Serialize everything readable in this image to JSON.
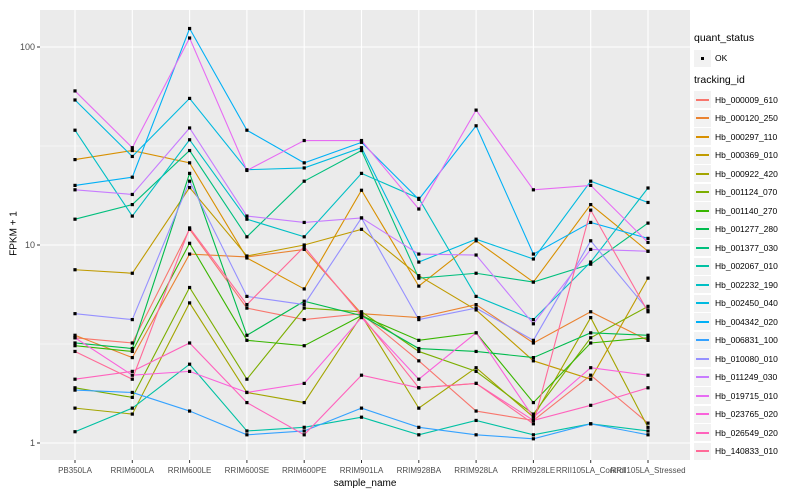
{
  "ui": {
    "background": "#FFFFFF",
    "panel_background": "#EBEBEB",
    "grid_color": "#FFFFFF",
    "legend_key_background": "#F2F2F2",
    "point_color": "#000000",
    "axis_text_color": "#4D4D4D"
  },
  "legend": {
    "quant_status_title": "quant_status",
    "quant_status_items": [
      "OK"
    ],
    "tracking_id_title": "tracking_id"
  },
  "chart_data": {
    "type": "line",
    "title": "",
    "xlabel": "sample_name",
    "ylabel": "FPKM + 1",
    "y_scale": "log10",
    "y_ticks": [
      1,
      10,
      100
    ],
    "ylim_log": [
      -0.09,
      2.19
    ],
    "grid": true,
    "legend_position": "right",
    "marker": "black-square",
    "categories": [
      "PB350LA",
      "RRIM600LA",
      "RRIM600LE",
      "RRIM600SE",
      "RRIM600PE",
      "RRIM901LA",
      "RRIM928BA",
      "RRIM928LA",
      "RRIM928LE",
      "RRII105LA_Control",
      "RRII105LA_Stressed"
    ],
    "series": [
      {
        "name": "Hb_000009_610",
        "color": "#F8766D",
        "values": [
          3.4,
          3.2,
          12.0,
          4.8,
          4.2,
          4.5,
          2.6,
          1.45,
          1.3,
          2.2,
          1.26
        ]
      },
      {
        "name": "Hb_000120_250",
        "color": "#EA8331",
        "values": [
          3.5,
          2.7,
          9.0,
          8.7,
          9.5,
          4.5,
          4.3,
          5.0,
          3.2,
          4.6,
          3.3
        ]
      },
      {
        "name": "Hb_000297_110",
        "color": "#D89000",
        "values": [
          27,
          30,
          26,
          8.6,
          6.0,
          18.9,
          6.2,
          10.5,
          6.5,
          16,
          9.3
        ]
      },
      {
        "name": "Hb_000369_010",
        "color": "#C09B00",
        "values": [
          7.5,
          7.2,
          19.5,
          8.8,
          10,
          12,
          7.0,
          4.7,
          2.6,
          2.1,
          6.8
        ]
      },
      {
        "name": "Hb_000922_420",
        "color": "#A3A500",
        "values": [
          1.5,
          1.4,
          5.1,
          1.8,
          1.6,
          4.4,
          1.5,
          2.4,
          1.35,
          4.3,
          1.2
        ]
      },
      {
        "name": "Hb_001124_070",
        "color": "#7CAE00",
        "values": [
          1.9,
          1.7,
          6.1,
          2.1,
          4.8,
          4.6,
          2.9,
          2.3,
          1.4,
          3.4,
          4.9
        ]
      },
      {
        "name": "Hb_001140_270",
        "color": "#39B600",
        "values": [
          3.1,
          2.9,
          10.2,
          3.3,
          3.1,
          4.4,
          3.3,
          3.6,
          1.6,
          3.2,
          3.4
        ]
      },
      {
        "name": "Hb_001277_280",
        "color": "#00BB4E",
        "values": [
          3.2,
          3.0,
          23,
          3.5,
          5.2,
          4.4,
          3.0,
          2.9,
          2.7,
          3.6,
          3.5
        ]
      },
      {
        "name": "Hb_001377_030",
        "color": "#00BF7D",
        "values": [
          13.5,
          16,
          30,
          11,
          21,
          30,
          6.8,
          7.2,
          6.5,
          8.0,
          12.9
        ]
      },
      {
        "name": "Hb_002067_010",
        "color": "#00C1A3",
        "values": [
          1.14,
          1.5,
          2.5,
          1.15,
          1.2,
          1.35,
          1.1,
          1.3,
          1.1,
          1.25,
          1.15
        ]
      },
      {
        "name": "Hb_002232_190",
        "color": "#00BFC4",
        "values": [
          38,
          14,
          34,
          13.5,
          11,
          23,
          17.2,
          5.5,
          4.2,
          8.2,
          19.4
        ]
      },
      {
        "name": "Hb_002450_040",
        "color": "#00BAE0",
        "values": [
          54,
          28,
          55,
          24,
          24.5,
          31,
          8.2,
          10.7,
          8.5,
          21,
          16.4
        ]
      },
      {
        "name": "Hb_004342_020",
        "color": "#00B0F6",
        "values": [
          20,
          22,
          124,
          38,
          26,
          33,
          17,
          40,
          9.0,
          13,
          10.8
        ]
      },
      {
        "name": "Hb_006831_100",
        "color": "#35A2FF",
        "values": [
          1.85,
          1.8,
          1.45,
          1.1,
          1.15,
          1.5,
          1.2,
          1.1,
          1.05,
          1.25,
          1.1
        ]
      },
      {
        "name": "Hb_010080_010",
        "color": "#9590FF",
        "values": [
          4.5,
          4.2,
          21,
          5.5,
          5.0,
          13.7,
          4.2,
          4.8,
          3.3,
          10.5,
          4.7
        ]
      },
      {
        "name": "Hb_011249_030",
        "color": "#C77CFF",
        "values": [
          19,
          18,
          39,
          14,
          13,
          13.7,
          9.0,
          8.9,
          4.0,
          9.5,
          9.3
        ]
      },
      {
        "name": "Hb_019715_010",
        "color": "#E76BF3",
        "values": [
          60,
          31,
          111,
          23.8,
          33.7,
          33.7,
          15.2,
          48,
          19,
          20,
          10.3
        ]
      },
      {
        "name": "Hb_023765_020",
        "color": "#FA62DB",
        "values": [
          3.4,
          2.2,
          2.3,
          1.8,
          2.0,
          4.3,
          2.1,
          3.6,
          1.35,
          2.4,
          2.2
        ]
      },
      {
        "name": "Hb_026549_020",
        "color": "#FF62BC",
        "values": [
          2.1,
          2.3,
          3.2,
          1.6,
          1.1,
          2.2,
          1.9,
          2.0,
          1.3,
          1.55,
          1.9
        ]
      },
      {
        "name": "Hb_140833_010",
        "color": "#FF6A98",
        "values": [
          2.9,
          2.1,
          12.2,
          5.0,
          9.8,
          4.4,
          1.9,
          2.0,
          1.25,
          15,
          4.6
        ]
      }
    ]
  }
}
